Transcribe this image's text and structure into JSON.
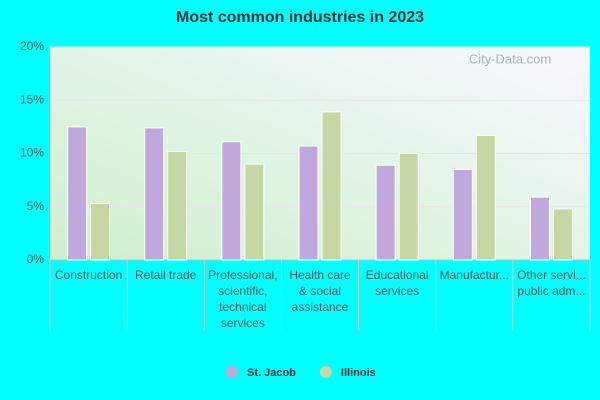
{
  "chart_data": {
    "type": "bar",
    "title": "Most common industries in 2023",
    "watermark": "City-Data.com",
    "categories": [
      [
        "Construction"
      ],
      [
        "Retail trade"
      ],
      [
        "Professional,",
        "scientific,",
        "technical",
        "services"
      ],
      [
        "Health care",
        "& social",
        "assistance"
      ],
      [
        "Educational",
        "services"
      ],
      [
        "Manufactur..."
      ],
      [
        "Other servi...",
        "public adm..."
      ]
    ],
    "series": [
      {
        "name": "St. Jacob",
        "color": "#c0a8dc",
        "values": [
          12.5,
          12.4,
          11.1,
          10.7,
          8.9,
          8.5,
          5.9
        ]
      },
      {
        "name": "Illinois",
        "color": "#c5d8a4",
        "values": [
          5.3,
          10.2,
          9.0,
          13.9,
          10.0,
          11.7,
          4.8
        ]
      }
    ],
    "ylim": [
      0,
      20
    ],
    "yticks": [
      {
        "value": 0,
        "label": "0%"
      },
      {
        "value": 5,
        "label": "5%"
      },
      {
        "value": 10,
        "label": "10%"
      },
      {
        "value": 15,
        "label": "15%"
      },
      {
        "value": 20,
        "label": "20%"
      }
    ],
    "grid": true
  }
}
